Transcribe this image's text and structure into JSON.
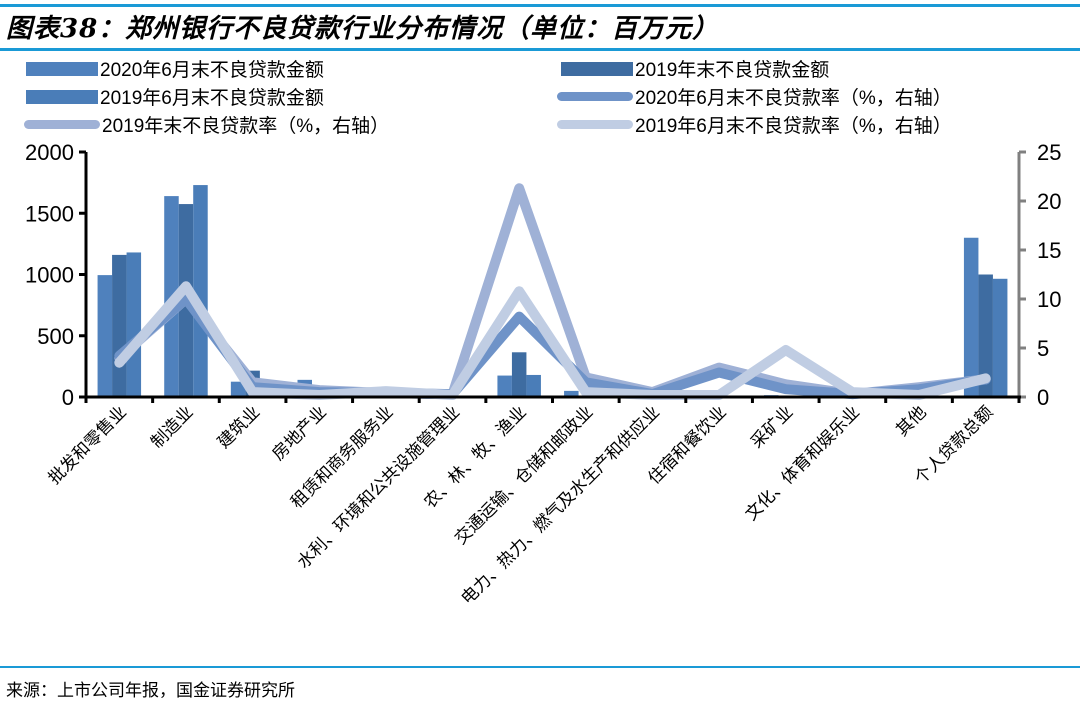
{
  "header": {
    "title": "图表38：郑州银行不良贷款行业分布情况（单位：百万元）"
  },
  "footer": {
    "source": "来源：上市公司年报，国金证券研究所"
  },
  "legend": [
    {
      "label": "2020年6月末不良贷款金额",
      "type": "bar",
      "color": "#4f81bd"
    },
    {
      "label": "2019年末不良贷款金额",
      "type": "bar",
      "color": "#3e6ca1"
    },
    {
      "label": "2019年6月末不良贷款金额",
      "type": "bar",
      "color": "#4a7db8"
    },
    {
      "label": "2020年6月末不良贷款率（%，右轴）",
      "type": "line",
      "color": "#6f93c8"
    },
    {
      "label": "2019年末不良贷款率（%，右轴）",
      "type": "line",
      "color": "#9fb1d6"
    },
    {
      "label": "2019年6月末不良贷款率（%，右轴）",
      "type": "line",
      "color": "#c0cde3"
    }
  ],
  "chart_data": {
    "type": "bar",
    "title": "图表38：郑州银行不良贷款行业分布情况（单位：百万元）",
    "xlabel": "",
    "ylabel": "百万元",
    "y2label": "%",
    "ylim": [
      0,
      2000
    ],
    "y2lim": [
      0,
      25
    ],
    "yticks": [
      0,
      500,
      1000,
      1500,
      2000
    ],
    "y2ticks": [
      0,
      5,
      10,
      15,
      20,
      25
    ],
    "grid": false,
    "legend_position": "top",
    "categories": [
      "批发和零售业",
      "制造业",
      "建筑业",
      "房地产业",
      "租赁和商务服务业",
      "水利、环境和公共设施管理业",
      "农、林、牧、渔业",
      "交通运输、仓储和邮政业",
      "电力、热力、燃气及水生产和供应业",
      "住宿和餐饮业",
      "采矿业",
      "文化、体育和娱乐业",
      "其他",
      "个人贷款总额"
    ],
    "series": [
      {
        "name": "2020年6月末不良贷款金额",
        "type": "bar",
        "axis": "left",
        "color": "#4f81bd",
        "values": [
          995,
          1640,
          125,
          140,
          10,
          5,
          175,
          50,
          5,
          10,
          15,
          5,
          10,
          1300
        ]
      },
      {
        "name": "2019年末不良贷款金额",
        "type": "bar",
        "axis": "left",
        "color": "#3e6ca1",
        "values": [
          1160,
          1575,
          215,
          50,
          10,
          5,
          365,
          10,
          5,
          10,
          10,
          5,
          10,
          1000
        ]
      },
      {
        "name": "2019年6月末不良贷款金额",
        "type": "bar",
        "axis": "left",
        "color": "#4a7db8",
        "values": [
          1180,
          1730,
          20,
          40,
          10,
          5,
          180,
          10,
          5,
          10,
          10,
          5,
          10,
          965
        ]
      },
      {
        "name": "2020年6月末不良贷款率（%，右轴）",
        "type": "line",
        "axis": "right",
        "color": "#6f93c8",
        "values": [
          4.2,
          10.0,
          1.0,
          0.5,
          0.4,
          0.3,
          8.2,
          1.5,
          0.3,
          2.5,
          0.8,
          0.3,
          0.8,
          1.8
        ]
      },
      {
        "name": "2019年末不良贷款率（%，右轴）",
        "type": "line",
        "axis": "right",
        "color": "#9fb1d6",
        "values": [
          4.0,
          10.0,
          1.5,
          0.7,
          0.4,
          0.3,
          21.3,
          2.0,
          0.5,
          3.0,
          1.3,
          0.3,
          1.0,
          1.8
        ]
      },
      {
        "name": "2019年6月末不良贷款率（%，右轴）",
        "type": "line",
        "axis": "right",
        "color": "#c0cde3",
        "values": [
          3.5,
          11.3,
          0.5,
          0.2,
          0.6,
          0.2,
          10.8,
          0.5,
          0.2,
          0.2,
          4.8,
          0.5,
          0.2,
          1.9
        ]
      }
    ]
  }
}
